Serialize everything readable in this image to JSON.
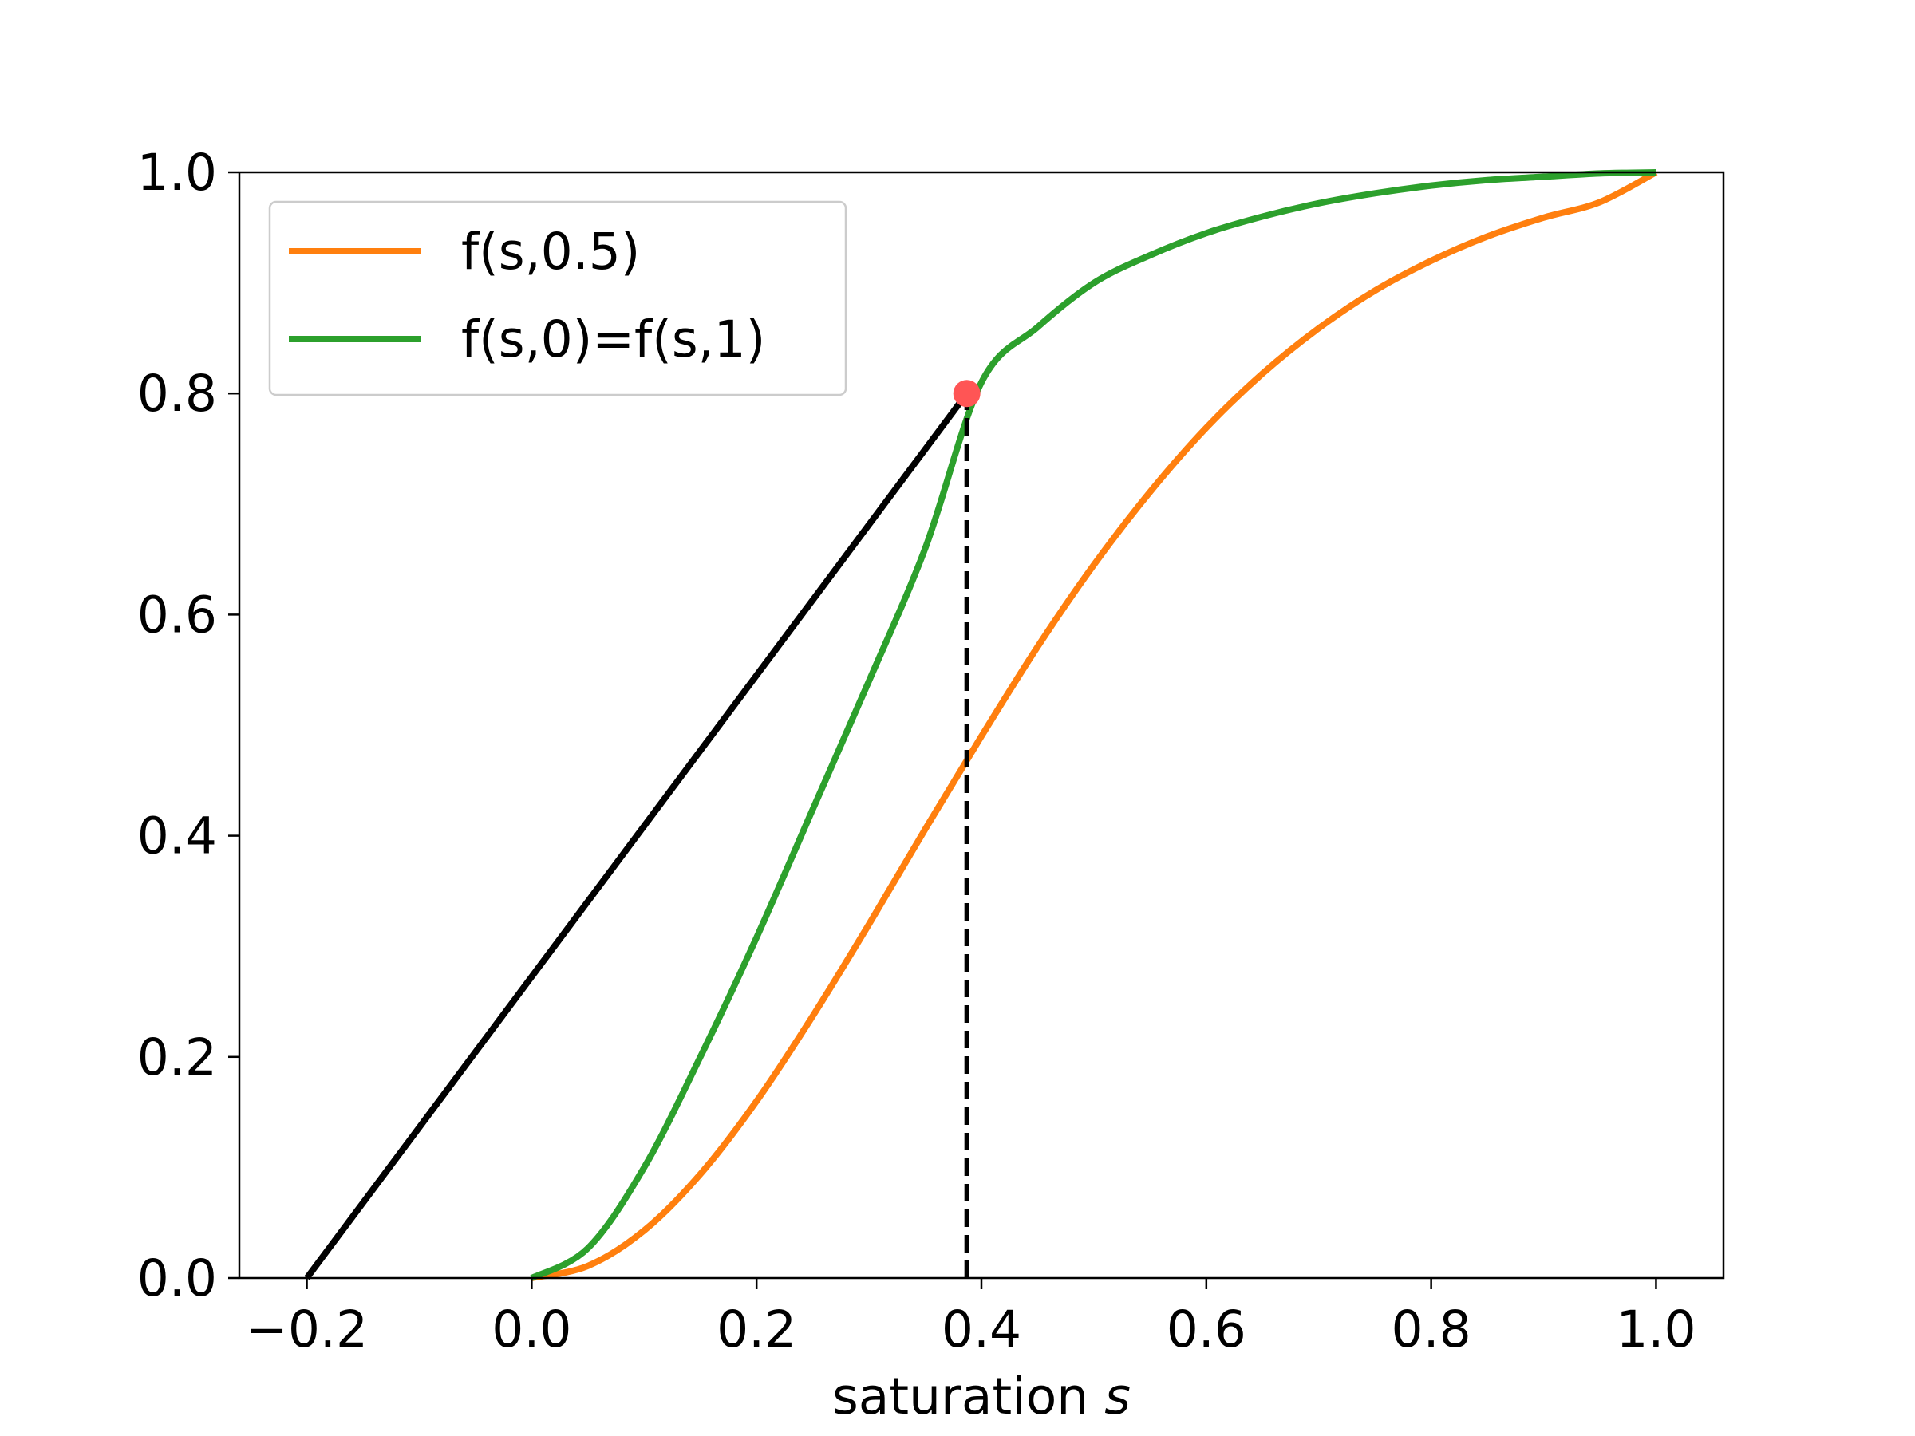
{
  "chart_data": {
    "type": "line",
    "title": "",
    "xlabel": "saturation",
    "xlabel_var": "s",
    "ylabel": "",
    "xlim": [
      -0.26,
      1.06
    ],
    "ylim": [
      0.0,
      1.0
    ],
    "xticks": [
      -0.2,
      0.0,
      0.2,
      0.4,
      0.6,
      0.8,
      1.0
    ],
    "xtick_labels": [
      "−0.2",
      "0.0",
      "0.2",
      "0.4",
      "0.6",
      "0.8",
      "1.0"
    ],
    "yticks": [
      0.0,
      0.2,
      0.4,
      0.6,
      0.8,
      1.0
    ],
    "ytick_labels": [
      "0.0",
      "0.2",
      "0.4",
      "0.6",
      "0.8",
      "1.0"
    ],
    "grid": false,
    "legend_position": "top-left",
    "series": [
      {
        "name": "f(s,0.5)",
        "color": "#ff7f0e",
        "x": [
          0.0,
          0.05,
          0.1,
          0.15,
          0.2,
          0.25,
          0.3,
          0.35,
          0.4,
          0.45,
          0.5,
          0.55,
          0.6,
          0.65,
          0.7,
          0.75,
          0.8,
          0.85,
          0.9,
          0.95,
          1.0
        ],
        "y": [
          0.0,
          0.011,
          0.043,
          0.094,
          0.16,
          0.237,
          0.32,
          0.406,
          0.49,
          0.571,
          0.645,
          0.711,
          0.769,
          0.818,
          0.859,
          0.893,
          0.92,
          0.942,
          0.959,
          0.973,
          1.0
        ]
      },
      {
        "name": "f(s,0)=f(s,1)",
        "color": "#2ca02c",
        "x": [
          0.0,
          0.05,
          0.1,
          0.15,
          0.2,
          0.25,
          0.3,
          0.35,
          0.4,
          0.45,
          0.5,
          0.55,
          0.6,
          0.65,
          0.7,
          0.75,
          0.8,
          0.85,
          0.9,
          0.95,
          1.0
        ],
        "y": [
          0.0,
          0.027,
          0.1,
          0.2,
          0.308,
          0.424,
          0.54,
          0.66,
          0.81,
          0.86,
          0.9,
          0.925,
          0.945,
          0.96,
          0.972,
          0.981,
          0.988,
          0.993,
          0.996,
          0.999,
          1.0
        ]
      },
      {
        "name": "",
        "color": "#000000",
        "x": [
          -0.2,
          0.387
        ],
        "y": [
          0.0,
          0.8
        ]
      }
    ],
    "marker": {
      "x": 0.387,
      "y": 0.8,
      "color": "#ff5555"
    },
    "vline": {
      "x": 0.387,
      "y0": 0.0,
      "y1": 0.8,
      "color": "#000000",
      "style": "dashed"
    }
  }
}
